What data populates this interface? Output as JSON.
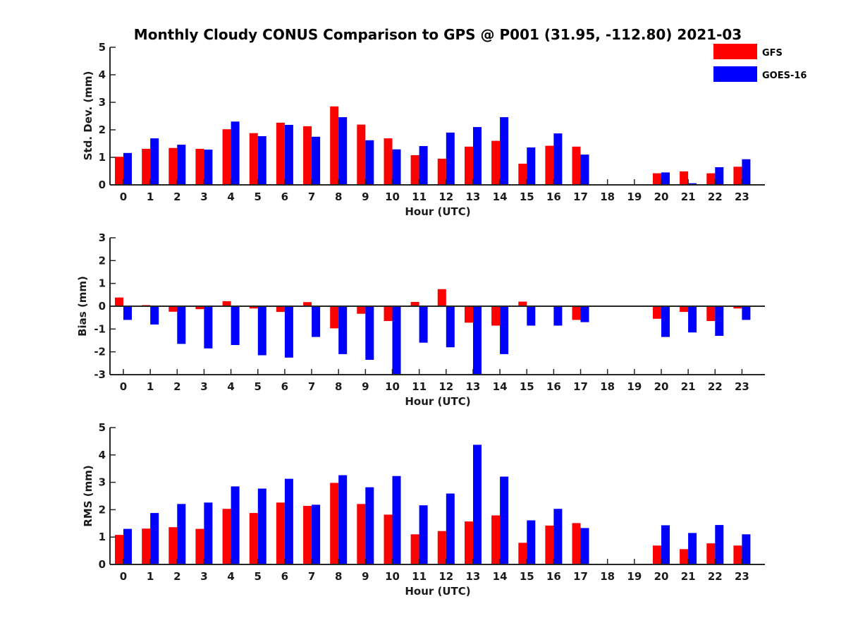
{
  "figure": {
    "title": "Monthly Cloudy CONUS Comparison to GPS @ P001 (31.95, -112.80) 2021-03"
  },
  "colors": {
    "gfs": "#ff0000",
    "goes": "#0000ff"
  },
  "legend": {
    "position": "top-right",
    "items": [
      {
        "label": "GFS",
        "color": "#ff0000"
      },
      {
        "label": "GOES-16",
        "color": "#0000ff"
      }
    ]
  },
  "chart_data": [
    {
      "type": "bar",
      "ylabel": "Std. Dev. (mm)",
      "xlabel": "Hour (UTC)",
      "ylim": [
        0,
        5
      ],
      "yticks": [
        "0",
        "1",
        "2",
        "3",
        "4",
        "5"
      ],
      "categories": [
        "0",
        "1",
        "2",
        "3",
        "4",
        "5",
        "6",
        "7",
        "8",
        "9",
        "10",
        "11",
        "12",
        "13",
        "14",
        "15",
        "16",
        "17",
        "18",
        "19",
        "20",
        "21",
        "22",
        "23"
      ],
      "series": [
        {
          "name": "GFS",
          "values": [
            1.02,
            1.31,
            1.34,
            1.31,
            2.02,
            1.88,
            2.26,
            2.13,
            2.85,
            2.19,
            1.69,
            1.08,
            0.95,
            1.39,
            1.6,
            0.77,
            1.42,
            1.39,
            0,
            0,
            0.42,
            0.49,
            0.42,
            0.66
          ]
        },
        {
          "name": "GOES-16",
          "values": [
            1.16,
            1.69,
            1.46,
            1.28,
            2.3,
            1.77,
            2.18,
            1.75,
            2.46,
            1.62,
            1.29,
            1.41,
            1.9,
            2.1,
            2.46,
            1.36,
            1.87,
            1.1,
            0,
            0,
            0.45,
            0.06,
            0.64,
            0.93
          ]
        }
      ]
    },
    {
      "type": "bar",
      "ylabel": "Bias (mm)",
      "xlabel": "Hour (UTC)",
      "ylim": [
        -3,
        3
      ],
      "yticks": [
        "-3",
        "-2",
        "-1",
        "0",
        "1",
        "2",
        "3"
      ],
      "categories": [
        "0",
        "1",
        "2",
        "3",
        "4",
        "5",
        "6",
        "7",
        "8",
        "9",
        "10",
        "11",
        "12",
        "13",
        "14",
        "15",
        "16",
        "17",
        "18",
        "19",
        "20",
        "21",
        "22",
        "23"
      ],
      "series": [
        {
          "name": "GFS",
          "values": [
            0.38,
            0.05,
            -0.24,
            -0.13,
            0.22,
            -0.1,
            -0.25,
            0.18,
            -0.97,
            -0.33,
            -0.65,
            0.19,
            0.75,
            -0.72,
            -0.85,
            0.2,
            0,
            -0.6,
            0,
            0,
            -0.55,
            -0.25,
            -0.65,
            -0.1
          ]
        },
        {
          "name": "GOES-16",
          "values": [
            -0.6,
            -0.8,
            -1.65,
            -1.85,
            -1.7,
            -2.15,
            -2.25,
            -1.35,
            -2.1,
            -2.35,
            -3.0,
            -1.6,
            -1.8,
            -3.0,
            -2.1,
            -0.85,
            -0.85,
            -0.7,
            0,
            0,
            -1.35,
            -1.15,
            -1.3,
            -0.6
          ]
        }
      ]
    },
    {
      "type": "bar",
      "ylabel": "RMS (mm)",
      "xlabel": "Hour (UTC)",
      "ylim": [
        0,
        5
      ],
      "yticks": [
        "0",
        "1",
        "2",
        "3",
        "4",
        "5"
      ],
      "categories": [
        "0",
        "1",
        "2",
        "3",
        "4",
        "5",
        "6",
        "7",
        "8",
        "9",
        "10",
        "11",
        "12",
        "13",
        "14",
        "15",
        "16",
        "17",
        "18",
        "19",
        "20",
        "21",
        "22",
        "23"
      ],
      "series": [
        {
          "name": "GFS",
          "values": [
            1.08,
            1.31,
            1.36,
            1.3,
            2.03,
            1.88,
            2.26,
            2.14,
            2.98,
            2.21,
            1.82,
            1.1,
            1.22,
            1.57,
            1.79,
            0.79,
            1.42,
            1.51,
            0,
            0,
            0.69,
            0.56,
            0.77,
            0.69
          ]
        },
        {
          "name": "GOES-16",
          "values": [
            1.3,
            1.88,
            2.21,
            2.26,
            2.85,
            2.77,
            3.13,
            2.18,
            3.26,
            2.82,
            3.23,
            2.16,
            2.59,
            4.37,
            3.21,
            1.61,
            2.03,
            1.33,
            0,
            0,
            1.43,
            1.15,
            1.44,
            1.1
          ]
        }
      ]
    }
  ]
}
